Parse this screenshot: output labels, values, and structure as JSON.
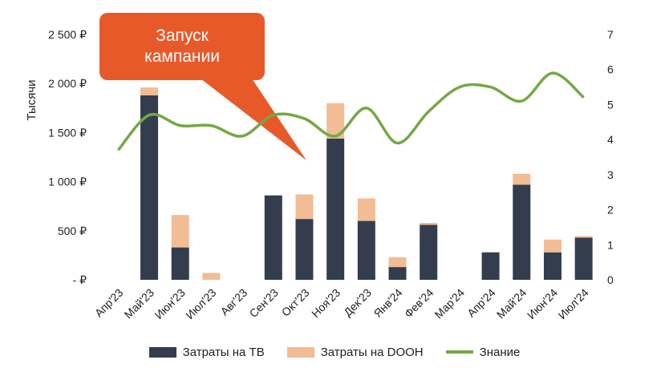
{
  "chart_data": {
    "type": "bar",
    "stacked": true,
    "categories": [
      "Апр'23",
      "Май'23",
      "Июн'23",
      "Июл'23",
      "Авг'23",
      "Сен'23",
      "Окт'23",
      "Ноя'23",
      "Дек'23",
      "Янв'24",
      "Фев'24",
      "Мар'24",
      "Апр'24",
      "Май'24",
      "Июн'24",
      "Июл'24"
    ],
    "ylabel": "Тысячи",
    "ylim": [
      0,
      2500
    ],
    "y_ticks": [
      "-  ₽",
      "500 ₽",
      "1 000 ₽",
      "1 500 ₽",
      "2 000 ₽",
      "2 500 ₽"
    ],
    "y2lim": [
      0,
      7
    ],
    "y2_ticks": [
      "0",
      "1",
      "2",
      "3",
      "4",
      "5",
      "6",
      "7"
    ],
    "series": [
      {
        "name": "Затраты на ТВ",
        "type": "bar",
        "color": "#343D4E",
        "values": [
          0,
          1880,
          330,
          0,
          0,
          860,
          620,
          1440,
          600,
          130,
          560,
          0,
          280,
          970,
          280,
          430
        ]
      },
      {
        "name": "Затраты на DOOH",
        "type": "bar",
        "color": "#F2BC94",
        "values": [
          0,
          80,
          330,
          70,
          0,
          0,
          250,
          360,
          230,
          100,
          20,
          0,
          0,
          110,
          130,
          15
        ]
      },
      {
        "name": "Знание",
        "type": "line",
        "axis": "right",
        "color": "#74A846",
        "values": [
          3.7,
          4.7,
          4.4,
          4.4,
          4.1,
          4.7,
          4.6,
          4.1,
          4.9,
          3.9,
          4.8,
          5.5,
          5.5,
          5.1,
          5.9,
          5.2
        ]
      }
    ],
    "annotation": "Запуск\nкампании",
    "grid": false,
    "legend_position": "bottom"
  }
}
